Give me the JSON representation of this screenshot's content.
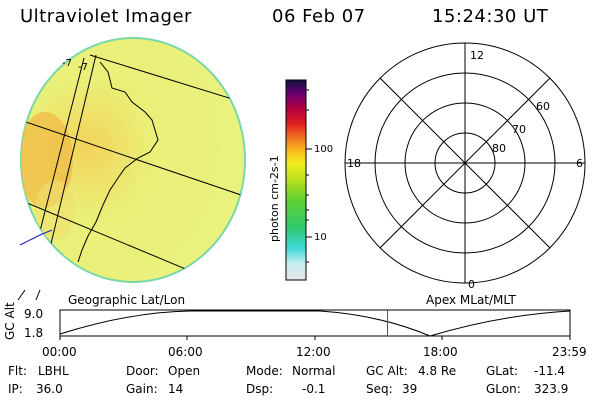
{
  "header": {
    "title": "Ultraviolet Imager",
    "date": "06 Feb 07",
    "time": "15:24:30 UT"
  },
  "earth_panel": {
    "label": "Geographic Lat/Lon",
    "edge_marks": [
      "-7",
      "-7"
    ]
  },
  "colorbar": {
    "axis_label": "photon cm-2s-1",
    "ticks": [
      "100",
      "10"
    ]
  },
  "polar_plot": {
    "label": "Apex MLat/MLT",
    "mlt_labels": [
      "12",
      "18",
      "6",
      "0"
    ],
    "mlat_labels": [
      "60",
      "70",
      "80"
    ]
  },
  "altitude_plot": {
    "ylabel": "GC Alt",
    "y_ticks": [
      "9.0",
      "1.8"
    ],
    "x_ticks": [
      "00:00",
      "06:00",
      "12:00",
      "18:00",
      "23:59"
    ],
    "current_time_hours": 15.41,
    "marker_color": "#cc2222"
  },
  "info": {
    "flt_label": "Flt:",
    "flt_value": "LBHL",
    "ip_label": "IP:",
    "ip_value": "36.0",
    "door_label": "Door:",
    "door_value": "Open",
    "gain_label": "Gain:",
    "gain_value": "14",
    "mode_label": "Mode:",
    "mode_value": "Normal",
    "dsp_label": "Dsp:",
    "dsp_value": "-0.1",
    "gcalt_label": "GC Alt:",
    "gcalt_value": "4.8 Re",
    "seq_label": "Seq:",
    "seq_value": "39",
    "glat_label": "GLat:",
    "glat_value": "-11.4",
    "glon_label": "GLon:",
    "glon_value": "323.9"
  },
  "colors": {
    "earth_main": "#e6f07a",
    "earth_orange": "#f1c14a",
    "earth_rim": "#76d9a3"
  }
}
